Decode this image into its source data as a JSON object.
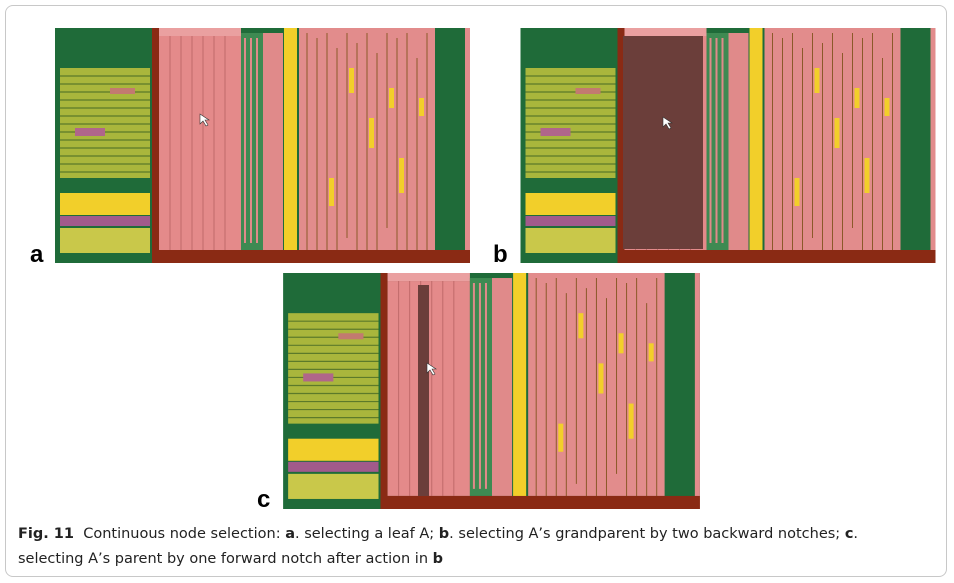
{
  "figure": {
    "panels": [
      {
        "label": "a"
      },
      {
        "label": "b"
      },
      {
        "label": "c"
      }
    ],
    "caption": {
      "label": "Fig. 11",
      "segments": [
        {
          "text": "Continuous node selection:",
          "bold": false
        },
        {
          "text": "a",
          "bold": true
        },
        {
          "text": ". selecting a leaf A;",
          "bold": false
        },
        {
          "text": "b",
          "bold": true
        },
        {
          "text": ". selecting A’s grandparent by two backward notches;",
          "bold": false
        },
        {
          "text": "c",
          "bold": true
        },
        {
          "text": ". selecting A’s parent by one forward notch after action in",
          "bold": false
        },
        {
          "text": "b",
          "bold": true
        }
      ]
    }
  }
}
